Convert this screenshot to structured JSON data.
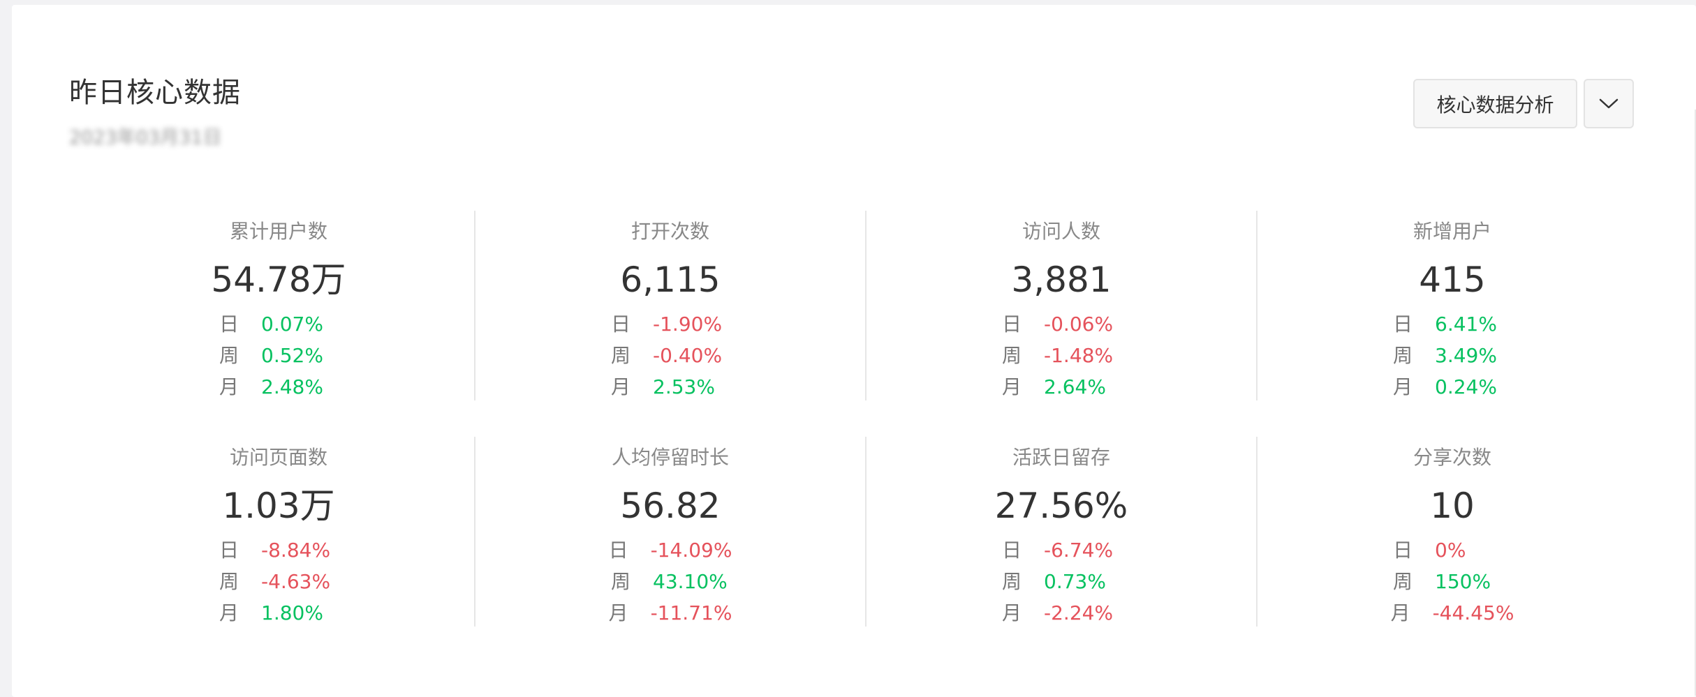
{
  "header": {
    "title": "昨日核心数据",
    "date": "2023年03月31日"
  },
  "actions": {
    "analysis_label": "核心数据分析",
    "dropdown_icon": "chevron-down-icon"
  },
  "colors": {
    "up": "#07c160",
    "down": "#e5525b"
  },
  "metrics": [
    {
      "label": "累计用户数",
      "value": "54.78万",
      "changes": [
        {
          "period": "日",
          "pct": "0.07%",
          "dir": "up"
        },
        {
          "period": "周",
          "pct": "0.52%",
          "dir": "up"
        },
        {
          "period": "月",
          "pct": "2.48%",
          "dir": "up"
        }
      ]
    },
    {
      "label": "打开次数",
      "value": "6,115",
      "changes": [
        {
          "period": "日",
          "pct": "-1.90%",
          "dir": "down"
        },
        {
          "period": "周",
          "pct": "-0.40%",
          "dir": "down"
        },
        {
          "period": "月",
          "pct": "2.53%",
          "dir": "up"
        }
      ]
    },
    {
      "label": "访问人数",
      "value": "3,881",
      "changes": [
        {
          "period": "日",
          "pct": "-0.06%",
          "dir": "down"
        },
        {
          "period": "周",
          "pct": "-1.48%",
          "dir": "down"
        },
        {
          "period": "月",
          "pct": "2.64%",
          "dir": "up"
        }
      ]
    },
    {
      "label": "新增用户",
      "value": "415",
      "changes": [
        {
          "period": "日",
          "pct": "6.41%",
          "dir": "up"
        },
        {
          "period": "周",
          "pct": "3.49%",
          "dir": "up"
        },
        {
          "period": "月",
          "pct": "0.24%",
          "dir": "up"
        }
      ]
    },
    {
      "label": "访问页面数",
      "value": "1.03万",
      "changes": [
        {
          "period": "日",
          "pct": "-8.84%",
          "dir": "down"
        },
        {
          "period": "周",
          "pct": "-4.63%",
          "dir": "down"
        },
        {
          "period": "月",
          "pct": "1.80%",
          "dir": "up"
        }
      ]
    },
    {
      "label": "人均停留时长",
      "value": "56.82",
      "changes": [
        {
          "period": "日",
          "pct": "-14.09%",
          "dir": "down"
        },
        {
          "period": "周",
          "pct": "43.10%",
          "dir": "up"
        },
        {
          "period": "月",
          "pct": "-11.71%",
          "dir": "down"
        }
      ]
    },
    {
      "label": "活跃日留存",
      "value": "27.56%",
      "changes": [
        {
          "period": "日",
          "pct": "-6.74%",
          "dir": "down"
        },
        {
          "period": "周",
          "pct": "0.73%",
          "dir": "up"
        },
        {
          "period": "月",
          "pct": "-2.24%",
          "dir": "down"
        }
      ]
    },
    {
      "label": "分享次数",
      "value": "10",
      "changes": [
        {
          "period": "日",
          "pct": "0%",
          "dir": "down"
        },
        {
          "period": "周",
          "pct": "150%",
          "dir": "up"
        },
        {
          "period": "月",
          "pct": "-44.45%",
          "dir": "down"
        }
      ]
    }
  ]
}
